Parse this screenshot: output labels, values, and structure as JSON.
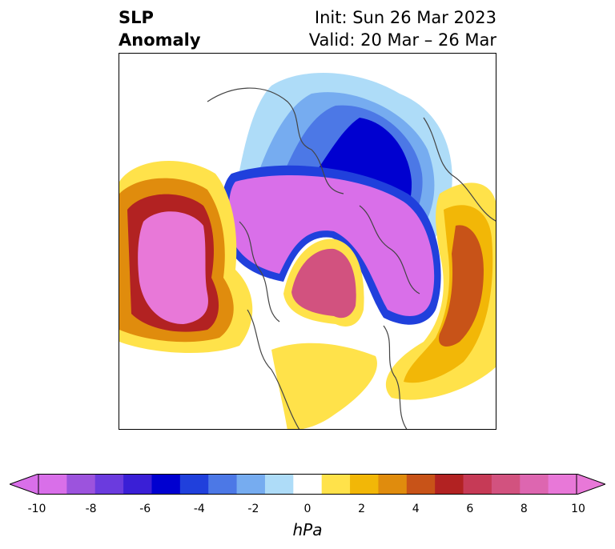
{
  "title": {
    "left_line1": "SLP",
    "left_line2": "Anomaly",
    "right_line1": "Init: Sun 26 Mar 2023",
    "right_line2": "Valid: 20 Mar – 26 Mar"
  },
  "colorbar": {
    "unit": "hPa",
    "ticks": [
      "-10",
      "-8",
      "-6",
      "-4",
      "-2",
      "0",
      "2",
      "4",
      "6",
      "8",
      "10"
    ],
    "colors": [
      "#d96fe9",
      "#9c53dd",
      "#6b3bde",
      "#3a1fd6",
      "#0000d0",
      "#2040dc",
      "#4c78e6",
      "#76acf0",
      "#aedcf8",
      "#ffffff",
      "#ffe24a",
      "#f2b707",
      "#e08c0d",
      "#c85318",
      "#b22222",
      "#c63a56",
      "#d2527f",
      "#dd66b0",
      "#e878d8"
    ],
    "extend_low_color": "#d96fe9",
    "extend_high_color": "#e878d8"
  },
  "map": {
    "projection": "polar-stereographic-north",
    "field": "sea-level-pressure-anomaly"
  }
}
